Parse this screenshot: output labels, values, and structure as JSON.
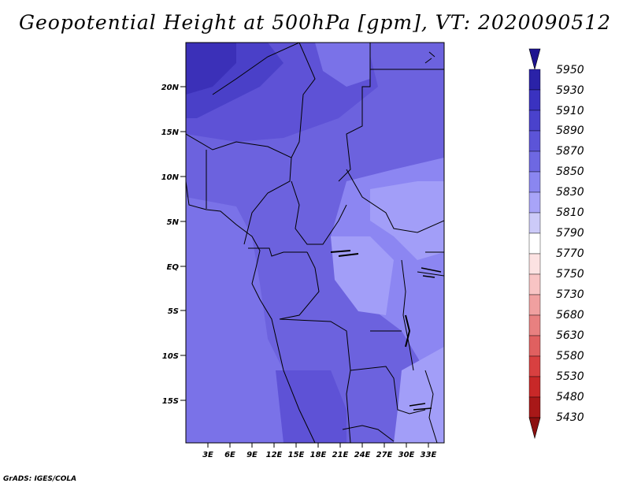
{
  "title": "Geopotential Height at 500hPa [gpm], VT: 2020090512",
  "credit": "GrADS: IGES/COLA",
  "map": {
    "lat_labels": [
      "20N",
      "15N",
      "10N",
      "5N",
      "EQ",
      "5S",
      "10S",
      "15S"
    ],
    "lon_labels": [
      "3E",
      "6E",
      "9E",
      "12E",
      "15E",
      "18E",
      "21E",
      "24E",
      "27E",
      "30E",
      "33E"
    ],
    "field_colors": {
      "darkest": "#3b30b8",
      "dark": "#4a40c8",
      "mid_dark": "#5e52d6",
      "mid": "#6c62de",
      "mid_light": "#7a72e8",
      "light": "#8c86f2",
      "lightest": "#a29ef8"
    }
  },
  "colorbar": {
    "levels": [
      "5950",
      "5930",
      "5910",
      "5890",
      "5870",
      "5850",
      "5830",
      "5810",
      "5790",
      "5770",
      "5750",
      "5730",
      "5680",
      "5630",
      "5580",
      "5530",
      "5480",
      "5430"
    ],
    "colors": [
      "#1e1490",
      "#2a22a8",
      "#3a32c0",
      "#4a42cc",
      "#5c54d8",
      "#6e68e2",
      "#8a86f0",
      "#a8a4f8",
      "#cccaf8",
      "#ffffff",
      "#fce2e2",
      "#f8c4c4",
      "#f0a0a0",
      "#e88080",
      "#e06060",
      "#d84040",
      "#c82828",
      "#a81818",
      "#8c1010"
    ]
  }
}
